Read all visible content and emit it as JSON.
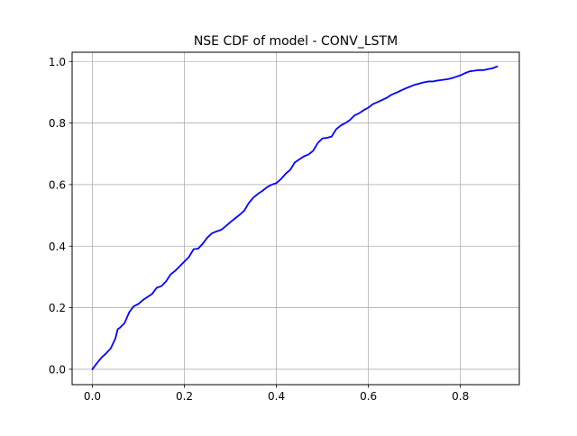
{
  "chart_data": {
    "type": "line",
    "title": "NSE CDF of model - CONV_LSTM",
    "xlabel": "",
    "ylabel": "",
    "xlim": [
      -0.044,
      0.928
    ],
    "ylim": [
      -0.05,
      1.03
    ],
    "xticks": [
      0.0,
      0.2,
      0.4,
      0.6,
      0.8
    ],
    "xtick_labels": [
      "0.0",
      "0.2",
      "0.4",
      "0.6",
      "0.8"
    ],
    "yticks": [
      0.0,
      0.2,
      0.4,
      0.6,
      0.8,
      1.0
    ],
    "ytick_labels": [
      "0.0",
      "0.2",
      "0.4",
      "0.6",
      "0.8",
      "1.0"
    ],
    "grid": true,
    "legend": "none",
    "series": [
      {
        "color": "#0000ff",
        "x": [
          0.0,
          0.01,
          0.02,
          0.03,
          0.04,
          0.05,
          0.055,
          0.06,
          0.07,
          0.08,
          0.09,
          0.1,
          0.11,
          0.12,
          0.13,
          0.14,
          0.15,
          0.16,
          0.17,
          0.18,
          0.19,
          0.2,
          0.21,
          0.22,
          0.23,
          0.24,
          0.25,
          0.26,
          0.27,
          0.28,
          0.29,
          0.3,
          0.31,
          0.32,
          0.33,
          0.34,
          0.35,
          0.36,
          0.37,
          0.38,
          0.39,
          0.4,
          0.41,
          0.42,
          0.43,
          0.44,
          0.45,
          0.46,
          0.47,
          0.48,
          0.49,
          0.5,
          0.51,
          0.52,
          0.53,
          0.54,
          0.55,
          0.56,
          0.57,
          0.58,
          0.59,
          0.6,
          0.61,
          0.62,
          0.63,
          0.64,
          0.65,
          0.66,
          0.67,
          0.68,
          0.69,
          0.7,
          0.71,
          0.72,
          0.73,
          0.74,
          0.75,
          0.76,
          0.77,
          0.78,
          0.79,
          0.8,
          0.81,
          0.82,
          0.83,
          0.84,
          0.85,
          0.86,
          0.87,
          0.88
        ],
        "y": [
          0.0,
          0.02,
          0.038,
          0.052,
          0.068,
          0.1,
          0.13,
          0.135,
          0.15,
          0.185,
          0.205,
          0.212,
          0.225,
          0.235,
          0.245,
          0.265,
          0.27,
          0.285,
          0.308,
          0.32,
          0.335,
          0.35,
          0.365,
          0.39,
          0.392,
          0.408,
          0.428,
          0.442,
          0.448,
          0.453,
          0.465,
          0.478,
          0.49,
          0.502,
          0.515,
          0.54,
          0.558,
          0.57,
          0.58,
          0.592,
          0.6,
          0.605,
          0.618,
          0.635,
          0.648,
          0.672,
          0.682,
          0.692,
          0.698,
          0.71,
          0.735,
          0.75,
          0.752,
          0.756,
          0.78,
          0.792,
          0.8,
          0.81,
          0.825,
          0.832,
          0.842,
          0.85,
          0.862,
          0.868,
          0.875,
          0.882,
          0.892,
          0.898,
          0.905,
          0.912,
          0.918,
          0.924,
          0.928,
          0.932,
          0.935,
          0.935,
          0.938,
          0.94,
          0.942,
          0.945,
          0.95,
          0.955,
          0.962,
          0.968,
          0.97,
          0.972,
          0.972,
          0.975,
          0.978,
          0.984
        ]
      }
    ]
  }
}
